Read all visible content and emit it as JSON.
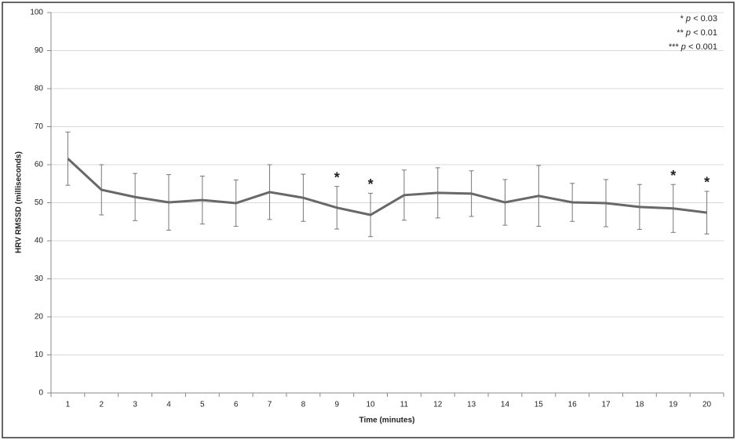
{
  "chart_data": {
    "type": "line",
    "y_label": "HRV RMSSD (milliseconds)",
    "x_label": "Time (minutes)",
    "categories": [
      "1",
      "2",
      "3",
      "4",
      "5",
      "6",
      "7",
      "8",
      "9",
      "10",
      "11",
      "12",
      "13",
      "14",
      "15",
      "16",
      "17",
      "18",
      "19",
      "20"
    ],
    "values": [
      61.6,
      53.4,
      51.5,
      50.1,
      50.7,
      49.9,
      52.8,
      51.3,
      48.7,
      46.8,
      52.0,
      52.6,
      52.4,
      50.1,
      51.8,
      50.1,
      49.9,
      48.9,
      48.5,
      47.4
    ],
    "errors": [
      7.0,
      6.6,
      6.2,
      7.3,
      6.3,
      6.1,
      7.2,
      6.2,
      5.6,
      5.7,
      6.6,
      6.6,
      6.0,
      6.0,
      8.0,
      5.0,
      6.2,
      5.9,
      6.3,
      5.6
    ],
    "significance": [
      null,
      null,
      null,
      null,
      null,
      null,
      null,
      null,
      "*",
      "*",
      null,
      null,
      null,
      null,
      null,
      null,
      null,
      null,
      "*",
      "*"
    ],
    "color": "#686868",
    "ylim": [
      0,
      100
    ],
    "yticks": [
      0,
      10,
      20,
      30,
      40,
      50,
      60,
      70,
      80,
      90,
      100
    ],
    "grid": true,
    "legend": [
      {
        "mark": "*",
        "symbol": "p",
        "threshold": "< 0.03"
      },
      {
        "mark": "**",
        "symbol": "p",
        "threshold": "< 0.01"
      },
      {
        "mark": "***",
        "symbol": "p",
        "threshold": "< 0.001"
      }
    ]
  }
}
